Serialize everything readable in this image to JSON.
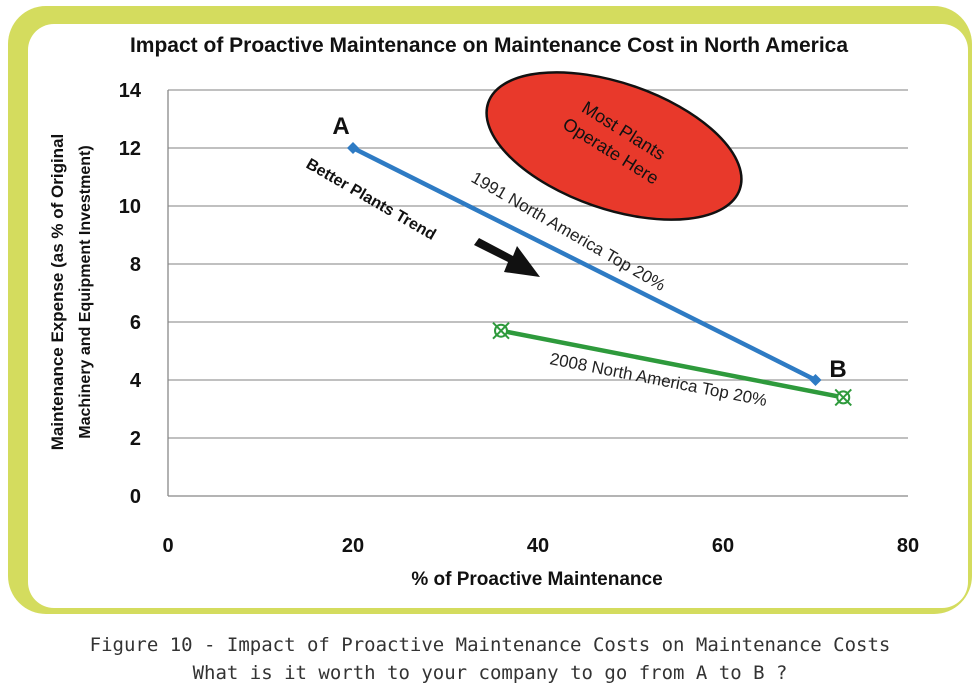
{
  "chart_data": {
    "type": "line",
    "title": "Impact of Proactive Maintenance on Maintenance Cost in North America",
    "xlabel": "% of Proactive Maintenance",
    "ylabel_line1": "Maintenance Expense (as % of Original",
    "ylabel_line2": "Machinery and Equipment Investment)",
    "xlim": [
      0,
      80
    ],
    "ylim": [
      0,
      14
    ],
    "xticks": [
      0,
      20,
      40,
      60,
      80
    ],
    "yticks": [
      0,
      2,
      4,
      6,
      8,
      10,
      12,
      14
    ],
    "grid": "horizontal",
    "series": [
      {
        "name": "1991 North America Top 20%",
        "color": "#2e7bc4",
        "marker": "diamond",
        "x": [
          20,
          70
        ],
        "y": [
          12,
          4
        ]
      },
      {
        "name": "2008 North America Top 20%",
        "color": "#2e9a3c",
        "marker": "circle-x",
        "x": [
          36,
          73
        ],
        "y": [
          5.7,
          3.4
        ]
      }
    ],
    "annotations": {
      "point_a": "A",
      "point_b": "B",
      "trend_label": "Better Plants Trend",
      "ellipse_line1": "Most Plants",
      "ellipse_line2": "Operate Here",
      "ellipse_color": "#e8392b"
    }
  },
  "caption": {
    "line1": "Figure 10 - Impact of Proactive Maintenance Costs on Maintenance Costs",
    "line2": "What is it worth to your company to go from A to B ?"
  }
}
